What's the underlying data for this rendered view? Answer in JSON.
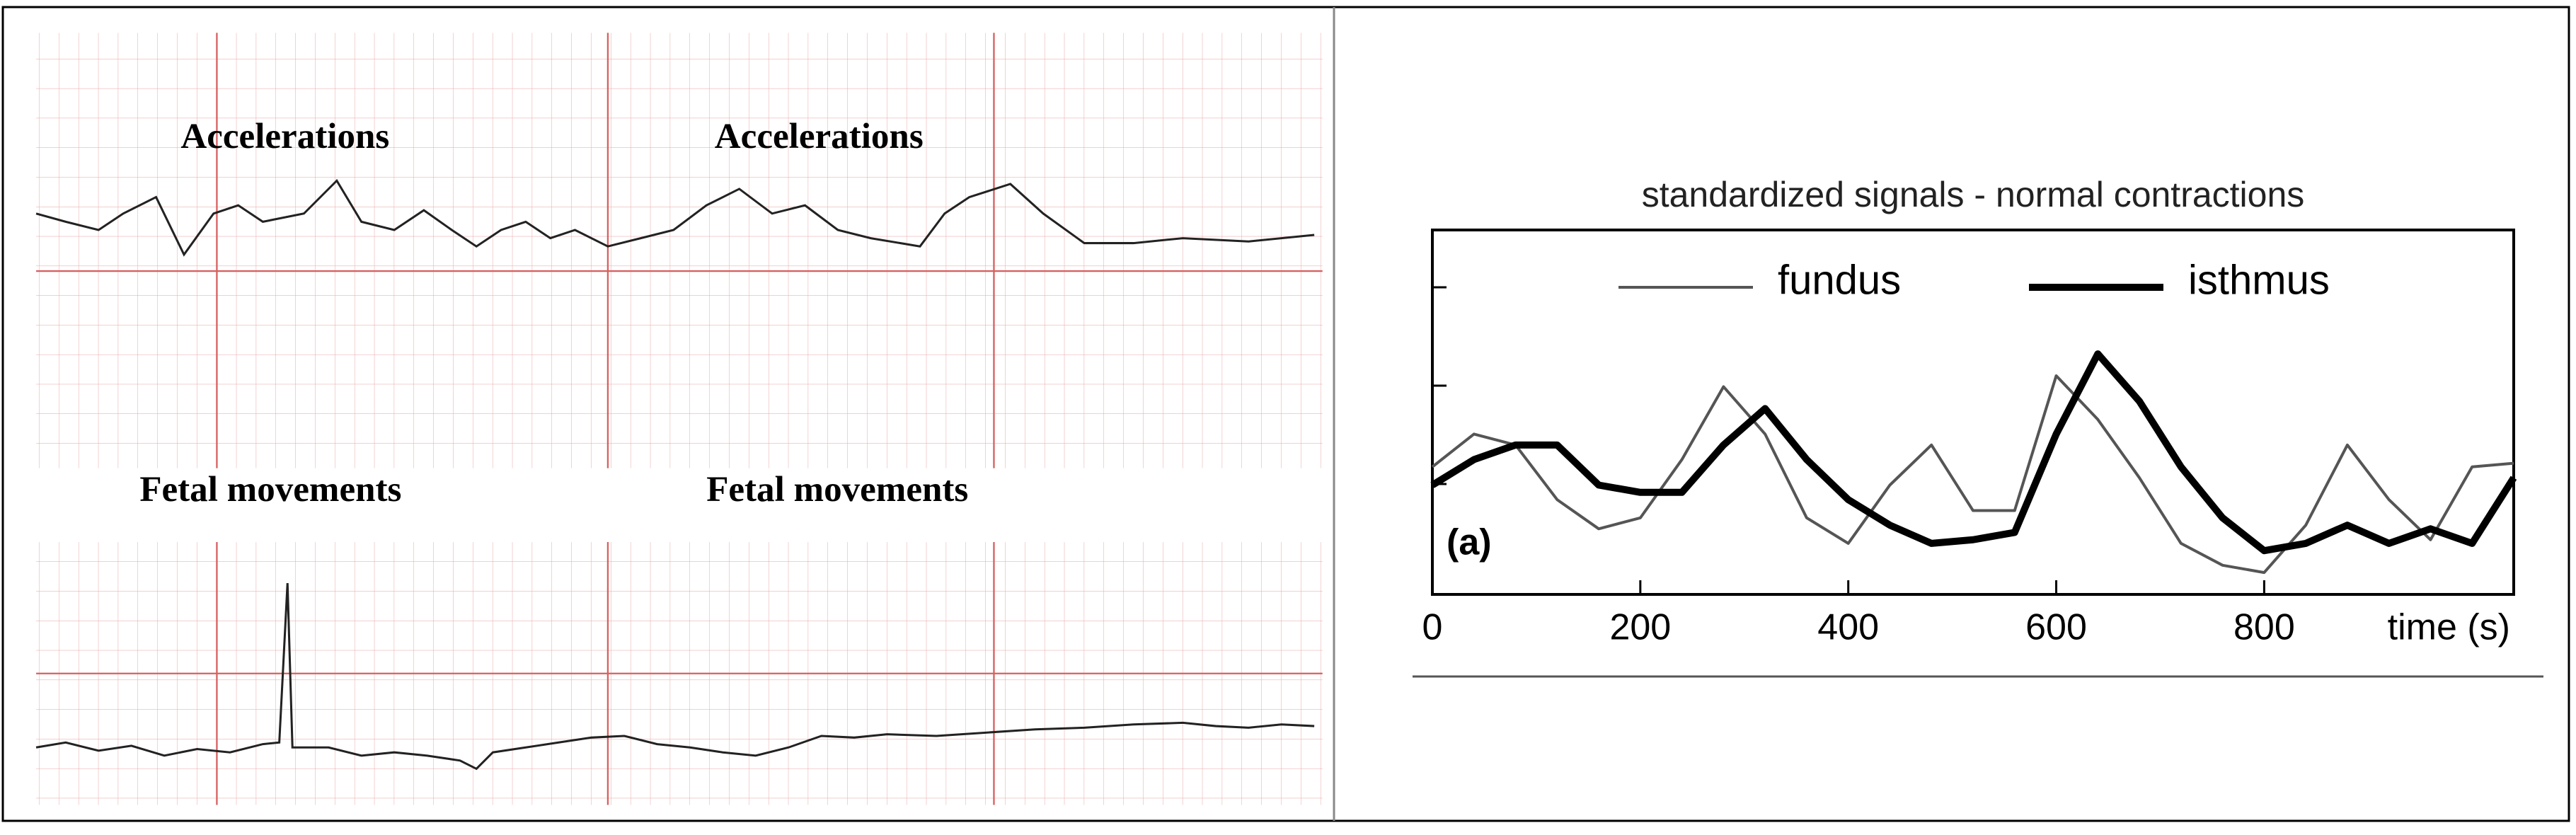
{
  "ctg_strip": {
    "upper_labels": [
      "Accelerations",
      "Accelerations"
    ],
    "lower_labels": [
      "Fetal movements",
      "Fetal movements"
    ]
  },
  "chart_data": {
    "type": "line",
    "title": "standardized signals - normal contractions",
    "xlabel": "time (s)",
    "annotation": "(a)",
    "x": [
      0,
      40,
      80,
      120,
      160,
      200,
      240,
      280,
      320,
      360,
      400,
      440,
      480,
      520,
      560,
      600,
      640,
      680,
      720,
      760,
      800,
      840,
      880,
      920,
      960,
      1000,
      1040
    ],
    "series": [
      {
        "name": "fundus",
        "color": "#555555",
        "values": [
          3.5,
          4.4,
          4.1,
          2.6,
          1.8,
          2.1,
          3.7,
          5.7,
          4.4,
          2.1,
          1.4,
          3.0,
          4.1,
          2.3,
          2.3,
          6.0,
          4.8,
          3.2,
          1.4,
          0.8,
          0.6,
          1.9,
          4.1,
          2.6,
          1.5,
          3.5,
          3.6
        ]
      },
      {
        "name": "isthmus",
        "color": "#000000",
        "values": [
          3.0,
          3.7,
          4.1,
          4.1,
          3.0,
          2.8,
          2.8,
          4.1,
          5.1,
          3.7,
          2.6,
          1.9,
          1.4,
          1.5,
          1.7,
          4.4,
          6.6,
          5.3,
          3.5,
          2.1,
          1.2,
          1.4,
          1.9,
          1.4,
          1.8,
          1.4,
          3.2
        ]
      }
    ],
    "xlim": [
      0,
      1040
    ],
    "xticks": [
      0,
      200,
      400,
      600,
      800
    ],
    "ylim": [
      0,
      10
    ],
    "legend": "top"
  }
}
